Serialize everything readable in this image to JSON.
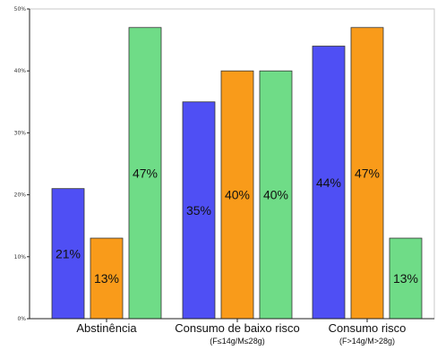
{
  "chart_data": {
    "type": "bar",
    "categories": [
      "Abstinência",
      "Consumo de baixo risco",
      "Consumo risco"
    ],
    "category_sublabels": [
      "",
      "(F≤14g/M≤28g)",
      "(F>14g/M>28g)"
    ],
    "series": [
      {
        "color": "#4f4ff4",
        "values": [
          21,
          35,
          44
        ],
        "labels": [
          "21%",
          "35%",
          "44%"
        ]
      },
      {
        "color": "#f99b1a",
        "values": [
          13,
          40,
          47
        ],
        "labels": [
          "13%",
          "40%",
          "47%"
        ]
      },
      {
        "color": "#6fdc87",
        "values": [
          47,
          40,
          13
        ],
        "labels": [
          "47%",
          "40%",
          "13%"
        ]
      }
    ],
    "ylim": [
      0,
      50
    ],
    "yticks": [
      0,
      10,
      20,
      30,
      40,
      50
    ],
    "ytick_labels": [
      "0%",
      "10%",
      "20%",
      "30%",
      "40%",
      "50%"
    ],
    "title": "",
    "xlabel": "",
    "ylabel": "",
    "grid": false,
    "legend": "none"
  }
}
